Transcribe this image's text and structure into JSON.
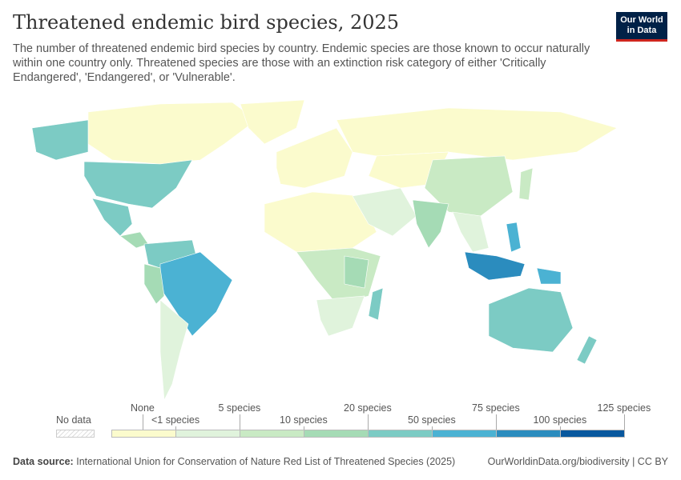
{
  "header": {
    "title": "Threatened endemic bird species, 2025",
    "subtitle": "The number of threatened endemic bird species by country. Endemic species are those known to occur naturally within one country only. Threatened species are those with an extinction risk category of either 'Critically Endangered', 'Endangered', or 'Vulnerable'.",
    "logo": "Our World in Data"
  },
  "legend": {
    "no_data": "No data",
    "bins": [
      {
        "upper": "<1 species",
        "color": "#fbfbcd"
      },
      {
        "upper": "5 species",
        "color": "#e0f3dc"
      },
      {
        "upper": "10 species",
        "color": "#c9eac4"
      },
      {
        "upper": "20 species",
        "color": "#a5dbb5"
      },
      {
        "upper": "50 species",
        "color": "#7ccbc4"
      },
      {
        "upper": "75 species",
        "color": "#4bb2d3"
      },
      {
        "upper": "100 species",
        "color": "#2b8cbe"
      },
      {
        "upper": "125 species",
        "color": "#08589e"
      }
    ],
    "labels": [
      "None",
      "<1 species",
      "5 species",
      "10 species",
      "20 species",
      "50 species",
      "75 species",
      "100 species",
      "125 species"
    ]
  },
  "footer": {
    "source_label": "Data source:",
    "source": "International Union for Conservation of Nature Red List of Threatened Species (2025)",
    "url": "OurWorldinData.org/biodiversity | CC BY"
  }
}
